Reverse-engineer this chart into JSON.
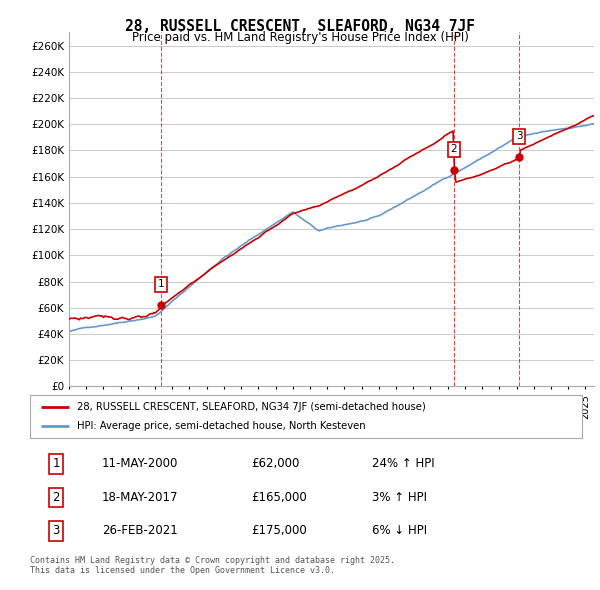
{
  "title": "28, RUSSELL CRESCENT, SLEAFORD, NG34 7JF",
  "subtitle": "Price paid vs. HM Land Registry's House Price Index (HPI)",
  "ylabel_values": [
    "£0",
    "£20K",
    "£40K",
    "£60K",
    "£80K",
    "£100K",
    "£120K",
    "£140K",
    "£160K",
    "£180K",
    "£200K",
    "£220K",
    "£240K",
    "£260K"
  ],
  "ylim": [
    0,
    270000
  ],
  "yticks": [
    0,
    20000,
    40000,
    60000,
    80000,
    100000,
    120000,
    140000,
    160000,
    180000,
    200000,
    220000,
    240000,
    260000
  ],
  "sale1_date": 2000.36,
  "sale1_price": 62000,
  "sale1_label": "1",
  "sale2_date": 2017.37,
  "sale2_price": 165000,
  "sale2_label": "2",
  "sale3_date": 2021.15,
  "sale3_price": 175000,
  "sale3_label": "3",
  "line_color_red": "#cc0000",
  "line_color_blue": "#6699cc",
  "dashed_color": "#cc0000",
  "background_color": "#ffffff",
  "grid_color": "#cccccc",
  "legend1": "28, RUSSELL CRESCENT, SLEAFORD, NG34 7JF (semi-detached house)",
  "legend2": "HPI: Average price, semi-detached house, North Kesteven",
  "table_entries": [
    {
      "num": "1",
      "date": "11-MAY-2000",
      "price": "£62,000",
      "pct": "24% ↑ HPI"
    },
    {
      "num": "2",
      "date": "18-MAY-2017",
      "price": "£165,000",
      "pct": "3% ↑ HPI"
    },
    {
      "num": "3",
      "date": "26-FEB-2021",
      "price": "£175,000",
      "pct": "6% ↓ HPI"
    }
  ],
  "footnote": "Contains HM Land Registry data © Crown copyright and database right 2025.\nThis data is licensed under the Open Government Licence v3.0.",
  "xlim_start": 1995.0,
  "xlim_end": 2025.5,
  "xticks": [
    1995,
    1996,
    1997,
    1998,
    1999,
    2000,
    2001,
    2002,
    2003,
    2004,
    2005,
    2006,
    2007,
    2008,
    2009,
    2010,
    2011,
    2012,
    2013,
    2014,
    2015,
    2016,
    2017,
    2018,
    2019,
    2020,
    2021,
    2022,
    2023,
    2024,
    2025
  ]
}
